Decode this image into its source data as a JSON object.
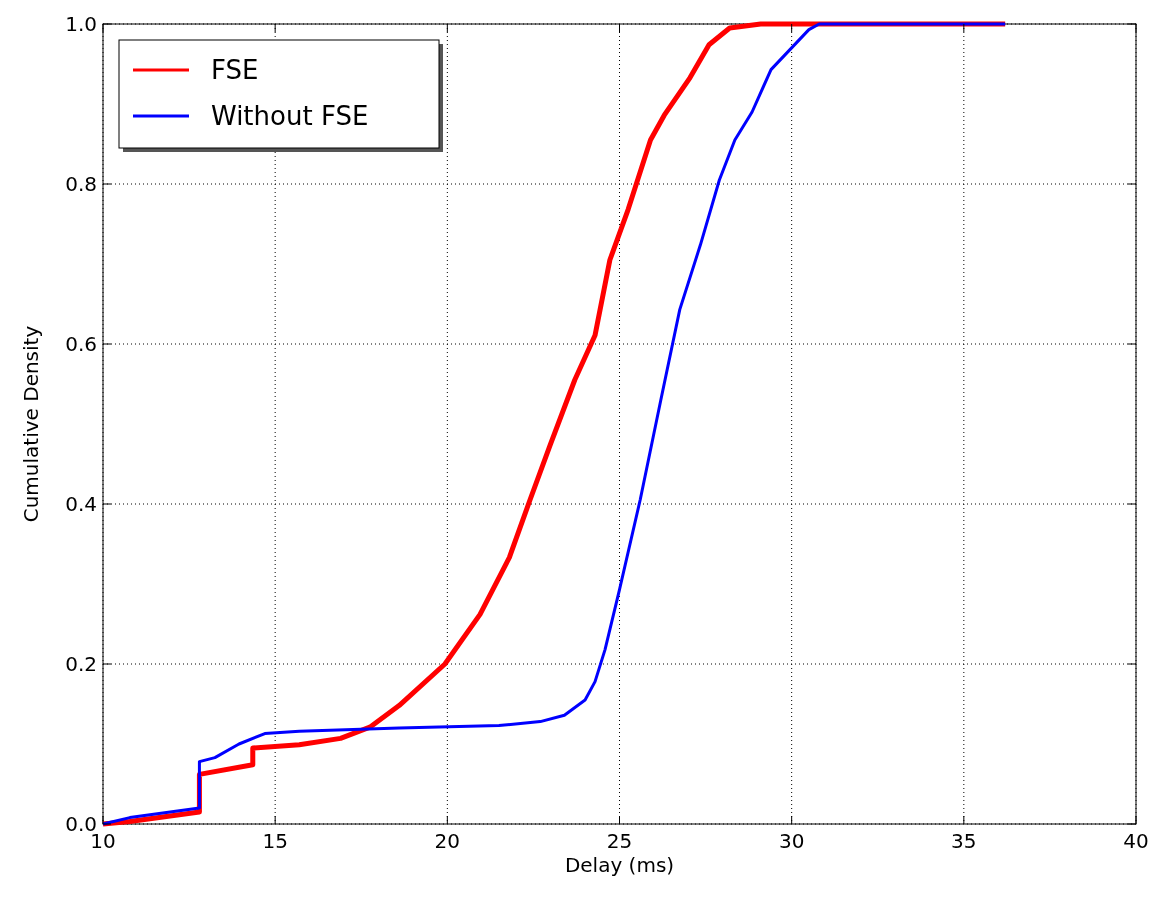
{
  "chart_data": {
    "type": "line",
    "xlabel": "Delay (ms)",
    "ylabel": "Cumulative Density",
    "xlim": [
      10,
      40
    ],
    "xticks": [
      10,
      15,
      20,
      25,
      30,
      35,
      40
    ],
    "ylim": [
      0,
      1
    ],
    "yticks": [
      {
        "value": 0,
        "label": "0.0"
      },
      0.2,
      0.4,
      0.6,
      0.8,
      {
        "value": 1,
        "label": "1.0"
      }
    ],
    "grid": true,
    "legend": "top left",
    "line_style": "solid",
    "marker": "none",
    "series": [
      {
        "name": "FSE",
        "color": "#ff0000",
        "x": [
          10,
          10.78,
          12.8,
          12.8,
          14.35,
          14.35,
          15.7,
          16.9,
          17.75,
          18.6,
          19.93,
          20.95,
          21.8,
          22.4,
          22.98,
          23.7,
          24.29,
          24.72,
          25.25,
          25.9,
          26.3,
          27.05,
          27.6,
          28.2,
          29.1,
          36.2
        ],
        "values": [
          0,
          0.003,
          0.015,
          0.062,
          0.074,
          0.095,
          0.099,
          0.107,
          0.121,
          0.148,
          0.2,
          0.262,
          0.333,
          0.405,
          0.473,
          0.555,
          0.611,
          0.705,
          0.768,
          0.855,
          0.886,
          0.933,
          0.974,
          0.995,
          1,
          1
        ]
      },
      {
        "name": "Without FSE",
        "color": "#0000ff",
        "x": [
          10,
          10.78,
          12.8,
          12.8,
          13.25,
          13.95,
          14.7,
          15.7,
          18.6,
          21.5,
          22.7,
          23.4,
          24,
          24.29,
          24.58,
          25,
          25.6,
          26.2,
          26.75,
          27.35,
          27.9,
          28.35,
          28.85,
          29.4,
          29.95,
          30.5,
          30.8,
          36.2
        ],
        "values": [
          0,
          0.008,
          0.02,
          0.078,
          0.083,
          0.1,
          0.113,
          0.116,
          0.12,
          0.123,
          0.128,
          0.136,
          0.155,
          0.178,
          0.218,
          0.293,
          0.405,
          0.53,
          0.643,
          0.724,
          0.805,
          0.855,
          0.89,
          0.943,
          0.968,
          0.993,
          1,
          1
        ]
      }
    ]
  }
}
